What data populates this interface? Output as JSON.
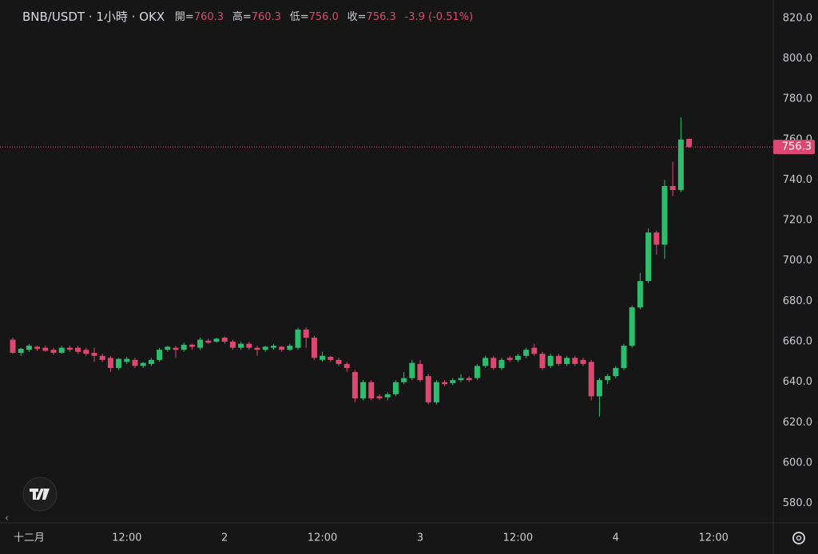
{
  "chart_data": {
    "type": "candlestick",
    "title": "BNB/USDT · 1小時 · OKX",
    "header": [
      {
        "label": "開=",
        "value": "760.3"
      },
      {
        "label": "高=",
        "value": "760.3"
      },
      {
        "label": "低=",
        "value": "756.0"
      },
      {
        "label": "收=",
        "value": "756.3"
      }
    ],
    "change": "-3.9 (-0.51%)",
    "categories": [
      null,
      null,
      "十二月",
      null,
      null,
      null,
      null,
      null,
      null,
      null,
      null,
      null,
      null,
      null,
      "12:00",
      null,
      null,
      null,
      null,
      null,
      null,
      null,
      null,
      null,
      null,
      null,
      "2",
      null,
      null,
      null,
      null,
      null,
      null,
      null,
      null,
      null,
      null,
      null,
      "12:00",
      null,
      null,
      null,
      null,
      null,
      null,
      null,
      null,
      null,
      null,
      null,
      "3",
      null,
      null,
      null,
      null,
      null,
      null,
      null,
      null,
      null,
      null,
      null,
      "12:00",
      null,
      null,
      null,
      null,
      null,
      null,
      null,
      null,
      null,
      null,
      null,
      "4",
      null,
      null,
      null,
      null,
      null,
      null,
      null,
      null,
      null,
      null,
      null,
      "12:00"
    ],
    "open": [
      661,
      654.5,
      656,
      657.5,
      657,
      656,
      654.5,
      657,
      657,
      656,
      654.5,
      653,
      652,
      647,
      650,
      651,
      648,
      649,
      651,
      656,
      657,
      656,
      658.5,
      657,
      660.5,
      660,
      662,
      660,
      657,
      659,
      657,
      656,
      657,
      657.5,
      656,
      657,
      666,
      662,
      651,
      652.5,
      651,
      649,
      645,
      632,
      640,
      633,
      632.5,
      634,
      640,
      642,
      649,
      643,
      630,
      640,
      639.5,
      641,
      642,
      642,
      648,
      652,
      647,
      652,
      651,
      653,
      657,
      654,
      648,
      653,
      649,
      652,
      651,
      650,
      633,
      641,
      643,
      647,
      658,
      677,
      690,
      714,
      708,
      737,
      735,
      760.3,
      null,
      null,
      null
    ],
    "high": [
      662,
      657,
      659,
      658,
      658,
      657,
      658,
      658,
      658,
      657,
      657,
      654,
      653,
      652,
      652.5,
      652,
      650,
      652,
      657,
      658,
      658,
      659.5,
      659,
      662,
      661.5,
      662,
      662.5,
      661,
      660,
      660,
      658,
      658,
      659,
      658,
      659,
      667,
      667,
      663,
      655,
      653,
      652,
      650,
      646,
      641,
      641,
      634,
      635,
      641,
      645,
      651,
      651,
      644,
      641,
      641,
      642,
      644,
      643,
      649,
      653,
      653,
      652,
      653,
      654,
      657,
      659,
      655,
      654,
      654,
      653,
      653,
      652,
      651,
      642,
      644,
      648,
      659,
      678,
      694,
      716,
      715,
      740,
      749,
      771,
      760.3,
      null,
      null,
      null
    ],
    "low": [
      654,
      653,
      655,
      655.5,
      655,
      653.5,
      654,
      655,
      654,
      653,
      650,
      650,
      645,
      646,
      649,
      647,
      647,
      648,
      650,
      655,
      652,
      655,
      656,
      656,
      659,
      659.5,
      659,
      656,
      656,
      656,
      653,
      655,
      656,
      655,
      655.5,
      656,
      657,
      651,
      650,
      650,
      648,
      645,
      630,
      631,
      631,
      631,
      631,
      633,
      639,
      641,
      640,
      629,
      629,
      638,
      638.5,
      640,
      640,
      641,
      647,
      646,
      646,
      650,
      650,
      652,
      653,
      646,
      647,
      648,
      648,
      648,
      648,
      631,
      623,
      639,
      642,
      646,
      657,
      676,
      689,
      703,
      701,
      732,
      734,
      756,
      null,
      null,
      null
    ],
    "close": [
      654.5,
      656.5,
      658,
      656.5,
      655.5,
      654.5,
      657,
      656,
      655,
      654,
      653,
      651,
      647,
      651.5,
      651.5,
      648,
      649.5,
      651,
      656,
      657.5,
      656,
      658.5,
      657.5,
      661,
      659.5,
      661.5,
      660,
      657,
      659,
      657,
      656,
      657.5,
      658,
      656,
      658,
      666,
      662,
      652,
      653,
      651,
      649,
      647,
      632,
      640,
      632,
      632,
      634,
      640,
      642,
      649.5,
      641,
      630,
      640,
      639,
      641,
      642,
      641,
      648,
      652,
      647,
      651,
      651,
      653,
      656,
      654,
      647,
      653,
      649,
      652,
      649,
      649,
      633,
      641,
      643,
      647,
      658,
      677,
      690,
      714,
      708,
      737,
      735,
      760,
      756.3,
      null,
      null,
      null
    ],
    "up_color": "#2dbd6e",
    "down_color": "#dd4870",
    "last_price": 756.3,
    "ylim": [
      570,
      829
    ],
    "yticks": [
      {
        "value": 580,
        "label": "580.0"
      },
      {
        "value": 600,
        "label": "600.0"
      },
      {
        "value": 620,
        "label": "620.0"
      },
      {
        "value": 640,
        "label": "640.0"
      },
      {
        "value": 660,
        "label": "660.0"
      },
      {
        "value": 680,
        "label": "680.0"
      },
      {
        "value": 700,
        "label": "700.0"
      },
      {
        "value": 720,
        "label": "720.0"
      },
      {
        "value": 740,
        "label": "740.0"
      },
      {
        "value": 760,
        "label": "760.0"
      },
      {
        "value": 780,
        "label": "780.0"
      },
      {
        "value": 800,
        "label": "800.0"
      },
      {
        "value": 820,
        "label": "820.0"
      }
    ]
  }
}
